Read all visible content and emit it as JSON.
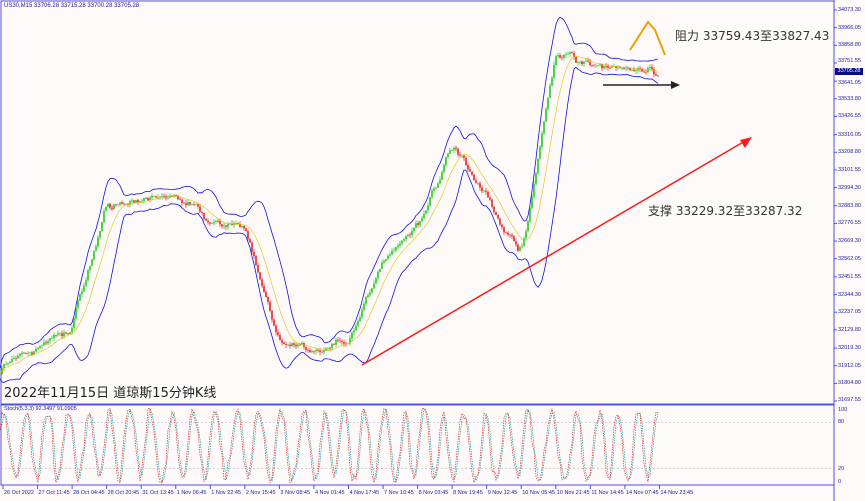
{
  "header": {
    "text": "US30,M15  33706.28 33715.28 33700.28 33705.28"
  },
  "title": "2022年11月15日 道琼斯15分钟K线",
  "annotations": {
    "resistance": "阻力 33759.43至33827.43",
    "support": "支撑 33229.32至33287.32"
  },
  "colors": {
    "bull": "#00c000",
    "bear": "#e00000",
    "bands": "#1010e0",
    "trendline": "#ff1a1a",
    "resistance_marker": "#f0a000",
    "stoch_main": "#e03030",
    "stoch_signal": "#20a0a0",
    "axis": "#5050e0"
  },
  "chart_data": {
    "type": "candlestick",
    "symbol": "US30",
    "timeframe": "M15",
    "ohlc_last": {
      "open": 33706.28,
      "high": 33715.28,
      "low": 33700.28,
      "close": 33705.28
    },
    "current_price": "33705.28",
    "ylim": [
      31697.55,
      34073.3
    ],
    "price_ticks": [
      "34073.30",
      "33966.05",
      "33858.80",
      "33751.55",
      "33641.05",
      "33533.80",
      "33426.55",
      "33316.05",
      "33208.80",
      "33101.55",
      "32994.30",
      "32883.80",
      "32776.55",
      "32669.30",
      "32562.05",
      "32451.55",
      "32344.30",
      "32237.05",
      "32129.80",
      "32019.30",
      "31912.05",
      "31804.80",
      "31697.55"
    ],
    "time_ticks": [
      "26 Oct 2022",
      "27 Oct 11:45",
      "28 Oct 04:45",
      "28 Oct 20:45",
      "31 Oct 13:45",
      "1 Nov 06:45",
      "1 Nov 22:45",
      "2 Nov 15:45",
      "3 Nov 08:45",
      "4 Nov 01:45",
      "4 Nov 17:45",
      "7 Nov 10:45",
      "8 Nov 03:45",
      "8 Nov 19:45",
      "9 Nov 12:45",
      "10 Nov 05:45",
      "10 Nov 21:45",
      "11 Nov 14:45",
      "14 Nov 07:45",
      "14 Nov 23:45"
    ],
    "approx_close_at_ticks": [
      31900,
      32018,
      32140,
      32900,
      32900,
      32950,
      32800,
      32750,
      32050,
      32000,
      32050,
      32560,
      32750,
      33250,
      32950,
      32560,
      33800,
      33740,
      33720,
      33705
    ],
    "indicator": {
      "name": "Stoch(5,3,3)",
      "label": "Stoch(5,3,3) 92.3497 91.0905",
      "main": 92.3497,
      "signal": 91.0905,
      "levels": [
        "100",
        "80",
        "20",
        "0"
      ]
    },
    "resistance_range": [
      33759.43,
      33827.43
    ],
    "support_range": [
      33229.32,
      33287.32
    ]
  }
}
